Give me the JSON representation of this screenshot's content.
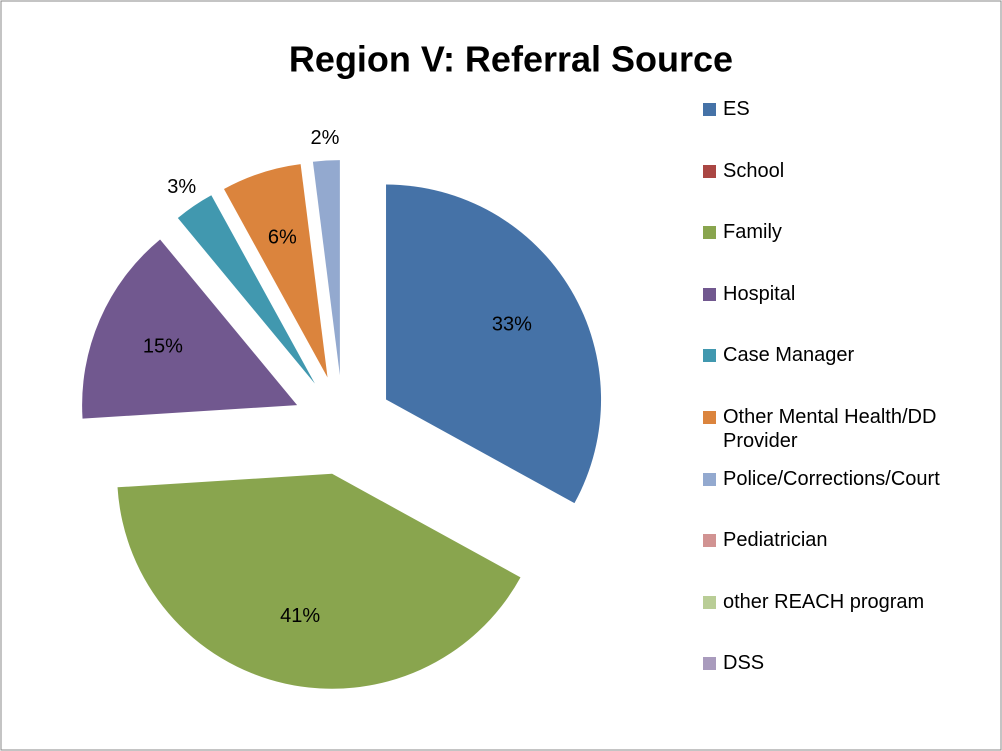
{
  "chart_data": {
    "type": "pie",
    "title": "Region V: Referral Source",
    "categories": [
      "ES",
      "School",
      "Family",
      "Hospital",
      "Case Manager",
      "Other Mental Health/DD Provider",
      "Police/Corrections/Court",
      "Pediatrician",
      "other REACH program",
      "DSS"
    ],
    "values": [
      33,
      0,
      41,
      15,
      3,
      6,
      2,
      0,
      0,
      0
    ],
    "value_labels": [
      "33%",
      null,
      "41%",
      "15%",
      "3%",
      "6%",
      "2%",
      null,
      null,
      null
    ],
    "colors": [
      "#4572a7",
      "#aa4643",
      "#89a54e",
      "#71588f",
      "#4198af",
      "#db843d",
      "#93a9cf",
      "#d19392",
      "#b9cd96",
      "#a99bbd"
    ],
    "legend": "right"
  }
}
